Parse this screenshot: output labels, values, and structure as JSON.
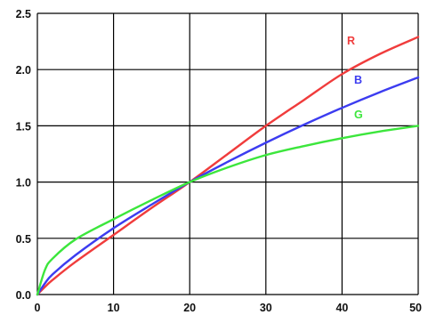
{
  "chart_data": {
    "type": "line",
    "title": "",
    "xlabel": "",
    "ylabel": "",
    "xlim": [
      0,
      50
    ],
    "ylim": [
      0,
      2.5
    ],
    "grid": true,
    "legend": "none",
    "x_ticks": [
      "0",
      "10",
      "20",
      "30",
      "40",
      "50"
    ],
    "y_ticks": [
      "0.0",
      "0.5",
      "1.0",
      "1.5",
      "2.0",
      "2.5"
    ],
    "x": [
      0,
      1,
      2,
      5,
      10,
      15,
      20,
      25,
      30,
      35,
      40,
      45,
      50
    ],
    "series": [
      {
        "name": "R",
        "color": "#f03c3c",
        "values": [
          0,
          0.068,
          0.13,
          0.29,
          0.53,
          0.77,
          1.0,
          1.25,
          1.5,
          1.73,
          1.96,
          2.14,
          2.29
        ]
      },
      {
        "name": "B",
        "color": "#3c3cf0",
        "values": [
          0,
          0.1,
          0.18,
          0.35,
          0.59,
          0.8,
          1.0,
          1.18,
          1.35,
          1.51,
          1.66,
          1.8,
          1.93
        ]
      },
      {
        "name": "G",
        "color": "#3ce63c",
        "values": [
          0,
          0.22,
          0.32,
          0.49,
          0.67,
          0.84,
          1.0,
          1.13,
          1.24,
          1.32,
          1.39,
          1.45,
          1.5
        ]
      }
    ]
  }
}
